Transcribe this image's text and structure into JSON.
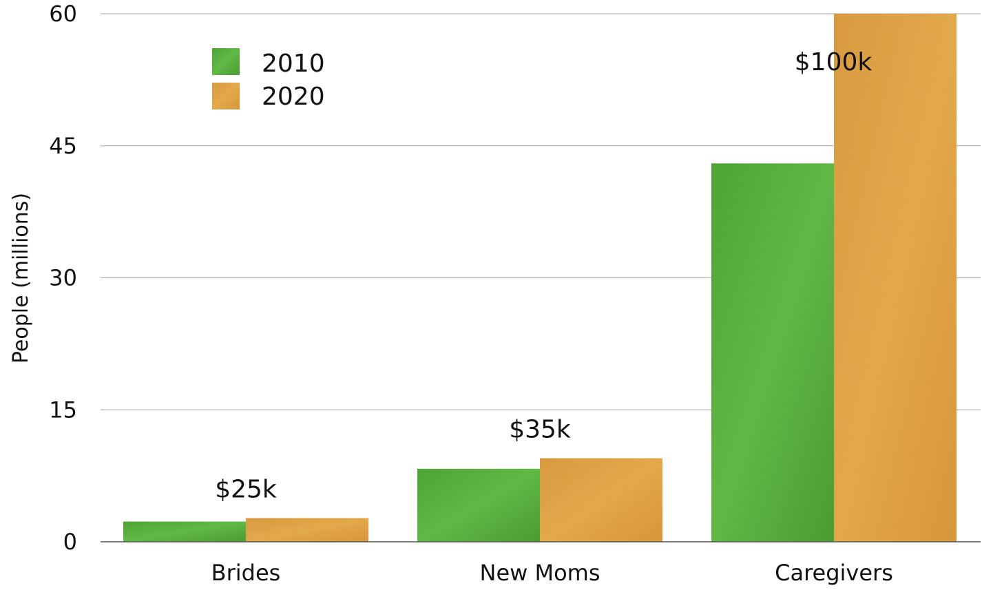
{
  "chart_data": {
    "type": "bar",
    "categories": [
      "Brides",
      "New Moms",
      "Caregivers"
    ],
    "series": [
      {
        "name": "2010",
        "values": [
          2.3,
          8.3,
          43
        ],
        "color": "#56ad3a"
      },
      {
        "name": "2020",
        "values": [
          2.7,
          9.5,
          60
        ],
        "color": "#dca044"
      }
    ],
    "annotations": [
      "$25k",
      "$35k",
      "$100k"
    ],
    "ylabel": "People (millions)",
    "xlabel": "",
    "ylim": [
      0,
      60
    ],
    "yticks": [
      0,
      15,
      30,
      45,
      60
    ],
    "grid": true,
    "legend_position": "top-left"
  }
}
